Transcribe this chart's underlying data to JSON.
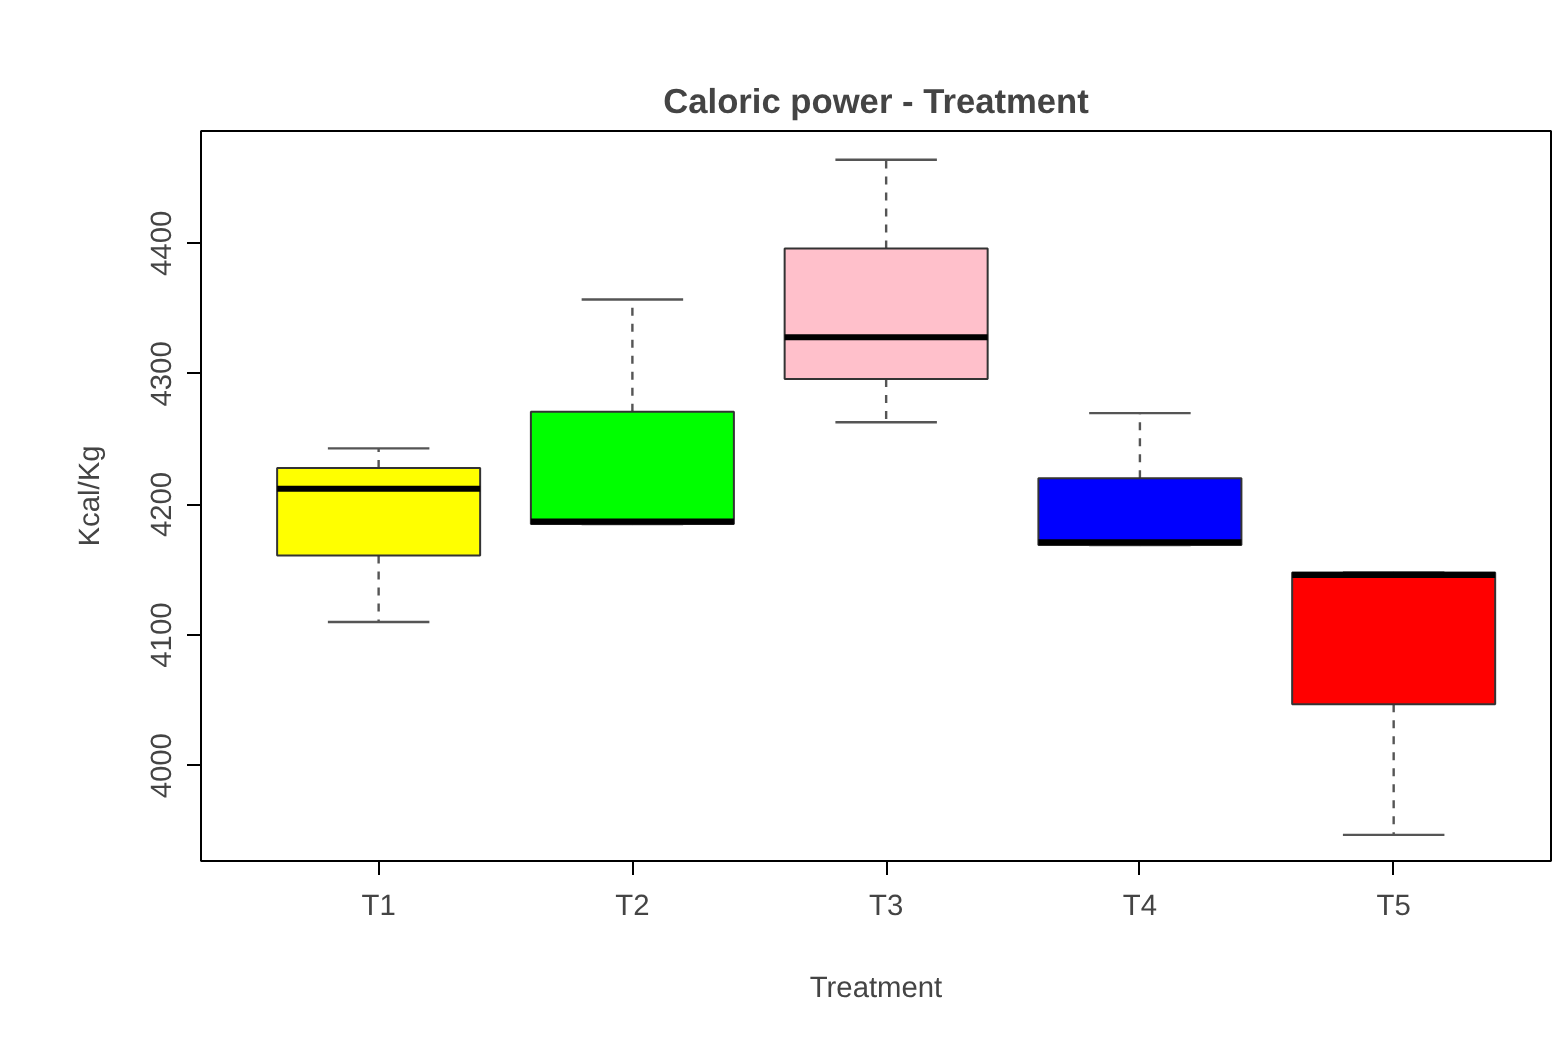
{
  "chart_data": {
    "type": "box",
    "title": "Caloric power - Treatment",
    "xlabel": "Treatment",
    "ylabel": "Kcal/Kg",
    "categories": [
      "T1",
      "T2",
      "T3",
      "T4",
      "T5"
    ],
    "colors": [
      "#ffff00",
      "#00ff00",
      "#ffc0cb",
      "#0000ff",
      "#ff0000"
    ],
    "boxes": [
      {
        "low": 4110,
        "q1": 4161,
        "median": 4212,
        "q3": 4228,
        "high": 4243
      },
      {
        "low": 4185,
        "q1": 4185,
        "median": 4187,
        "q3": 4271,
        "high": 4357
      },
      {
        "low": 4263,
        "q1": 4296,
        "median": 4328,
        "q3": 4396,
        "high": 4464
      },
      {
        "low": 4169,
        "q1": 4169,
        "median": 4171,
        "q3": 4220,
        "high": 4270
      },
      {
        "low": 3947,
        "q1": 4047,
        "median": 4146,
        "q3": 4148,
        "high": 4148
      }
    ],
    "ylim": [
      3927,
      4486
    ],
    "yticks": [
      4000,
      4100,
      4200,
      4300,
      4400
    ],
    "grid": false
  }
}
